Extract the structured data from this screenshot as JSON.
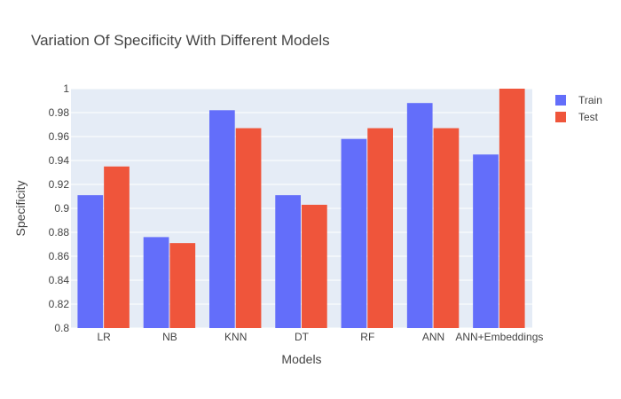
{
  "chart_data": {
    "type": "bar",
    "title": "Variation Of Specificity With Different Models",
    "xlabel": "Models",
    "ylabel": "Specificity",
    "categories": [
      "LR",
      "NB",
      "KNN",
      "DT",
      "RF",
      "ANN",
      "ANN+Embeddings"
    ],
    "series": [
      {
        "name": "Train",
        "color": "#636efa",
        "values": [
          0.911,
          0.876,
          0.982,
          0.911,
          0.958,
          0.988,
          0.945
        ]
      },
      {
        "name": "Test",
        "color": "#ef553b",
        "values": [
          0.935,
          0.871,
          0.967,
          0.903,
          0.967,
          0.967,
          1.0
        ]
      }
    ],
    "ylim": [
      0.8,
      1.0
    ],
    "yticks": [
      "0.8",
      "0.82",
      "0.84",
      "0.86",
      "0.88",
      "0.9",
      "0.92",
      "0.94",
      "0.96",
      "0.98",
      "1"
    ],
    "grid": true,
    "legend": "top-right",
    "plot_background": "#e5ecf6"
  }
}
